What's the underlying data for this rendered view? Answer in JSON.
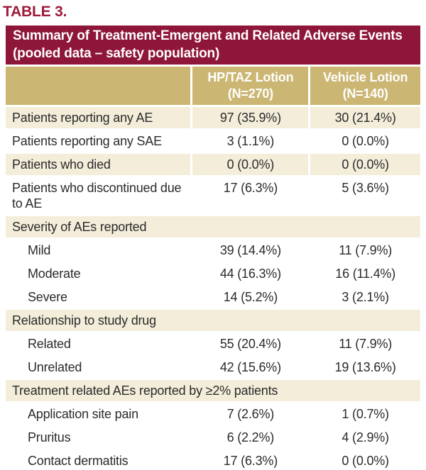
{
  "colors": {
    "maroon": "#8e1638",
    "heading_red": "#9e1b3b",
    "tan": "#ccb673",
    "cream": "#f3edda",
    "text": "#2b2b2b"
  },
  "figure_label": "TABLE 3.",
  "table": {
    "title_line1": "Summary of Treatment-Emergent and Related Adverse Events",
    "title_line2": "(pooled data – safety population)",
    "columns": [
      {
        "name": "HP/TAZ Lotion",
        "n": "(N=270)"
      },
      {
        "name": "Vehicle Lotion",
        "n": "(N=140)"
      }
    ],
    "rows": [
      {
        "type": "data",
        "shade": "cream",
        "indent": false,
        "label": "Patients reporting any AE",
        "values": [
          "97 (35.9%)",
          "30 (21.4%)"
        ]
      },
      {
        "type": "data",
        "shade": "white",
        "indent": false,
        "label": "Patients reporting any SAE",
        "values": [
          "3 (1.1%)",
          "0 (0.0%)"
        ]
      },
      {
        "type": "data",
        "shade": "cream",
        "indent": false,
        "label": "Patients who died",
        "values": [
          "0 (0.0%)",
          "0 (0.0%)"
        ]
      },
      {
        "type": "data",
        "shade": "white",
        "indent": false,
        "label": "Patients who discontinued due to AE",
        "values": [
          "17 (6.3%)",
          "5 (3.6%)"
        ]
      },
      {
        "type": "section",
        "label": "Severity of AEs reported"
      },
      {
        "type": "data",
        "shade": "white",
        "indent": true,
        "label": "Mild",
        "values": [
          "39 (14.4%)",
          "11 (7.9%)"
        ]
      },
      {
        "type": "data",
        "shade": "white",
        "indent": true,
        "label": "Moderate",
        "values": [
          "44 (16.3%)",
          "16 (11.4%)"
        ]
      },
      {
        "type": "data",
        "shade": "white",
        "indent": true,
        "label": "Severe",
        "values": [
          "14 (5.2%)",
          "3 (2.1%)"
        ]
      },
      {
        "type": "section",
        "label": "Relationship to study drug"
      },
      {
        "type": "data",
        "shade": "white",
        "indent": true,
        "label": "Related",
        "values": [
          "55 (20.4%)",
          "11 (7.9%)"
        ]
      },
      {
        "type": "data",
        "shade": "white",
        "indent": true,
        "label": "Unrelated",
        "values": [
          "42 (15.6%)",
          "19 (13.6%)"
        ]
      },
      {
        "type": "section",
        "label": "Treatment related AEs reported by ≥2% patients"
      },
      {
        "type": "data",
        "shade": "white",
        "indent": true,
        "label": "Application site pain",
        "values": [
          "7 (2.6%)",
          "1 (0.7%)"
        ]
      },
      {
        "type": "data",
        "shade": "white",
        "indent": true,
        "label": "Pruritus",
        "values": [
          "6 (2.2%)",
          "4 (2.9%)"
        ]
      },
      {
        "type": "data",
        "shade": "white",
        "indent": true,
        "label": "Contact dermatitis",
        "values": [
          "17 (6.3%)",
          "0 (0.0%)"
        ]
      }
    ]
  }
}
